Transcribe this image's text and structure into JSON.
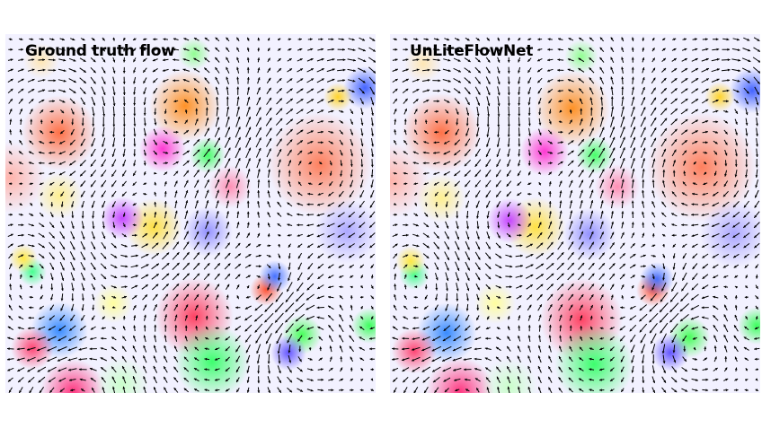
{
  "figure": {
    "panels": [
      {
        "title": "Ground truth flow"
      },
      {
        "title": "UnLiteFlowNet"
      }
    ]
  }
}
